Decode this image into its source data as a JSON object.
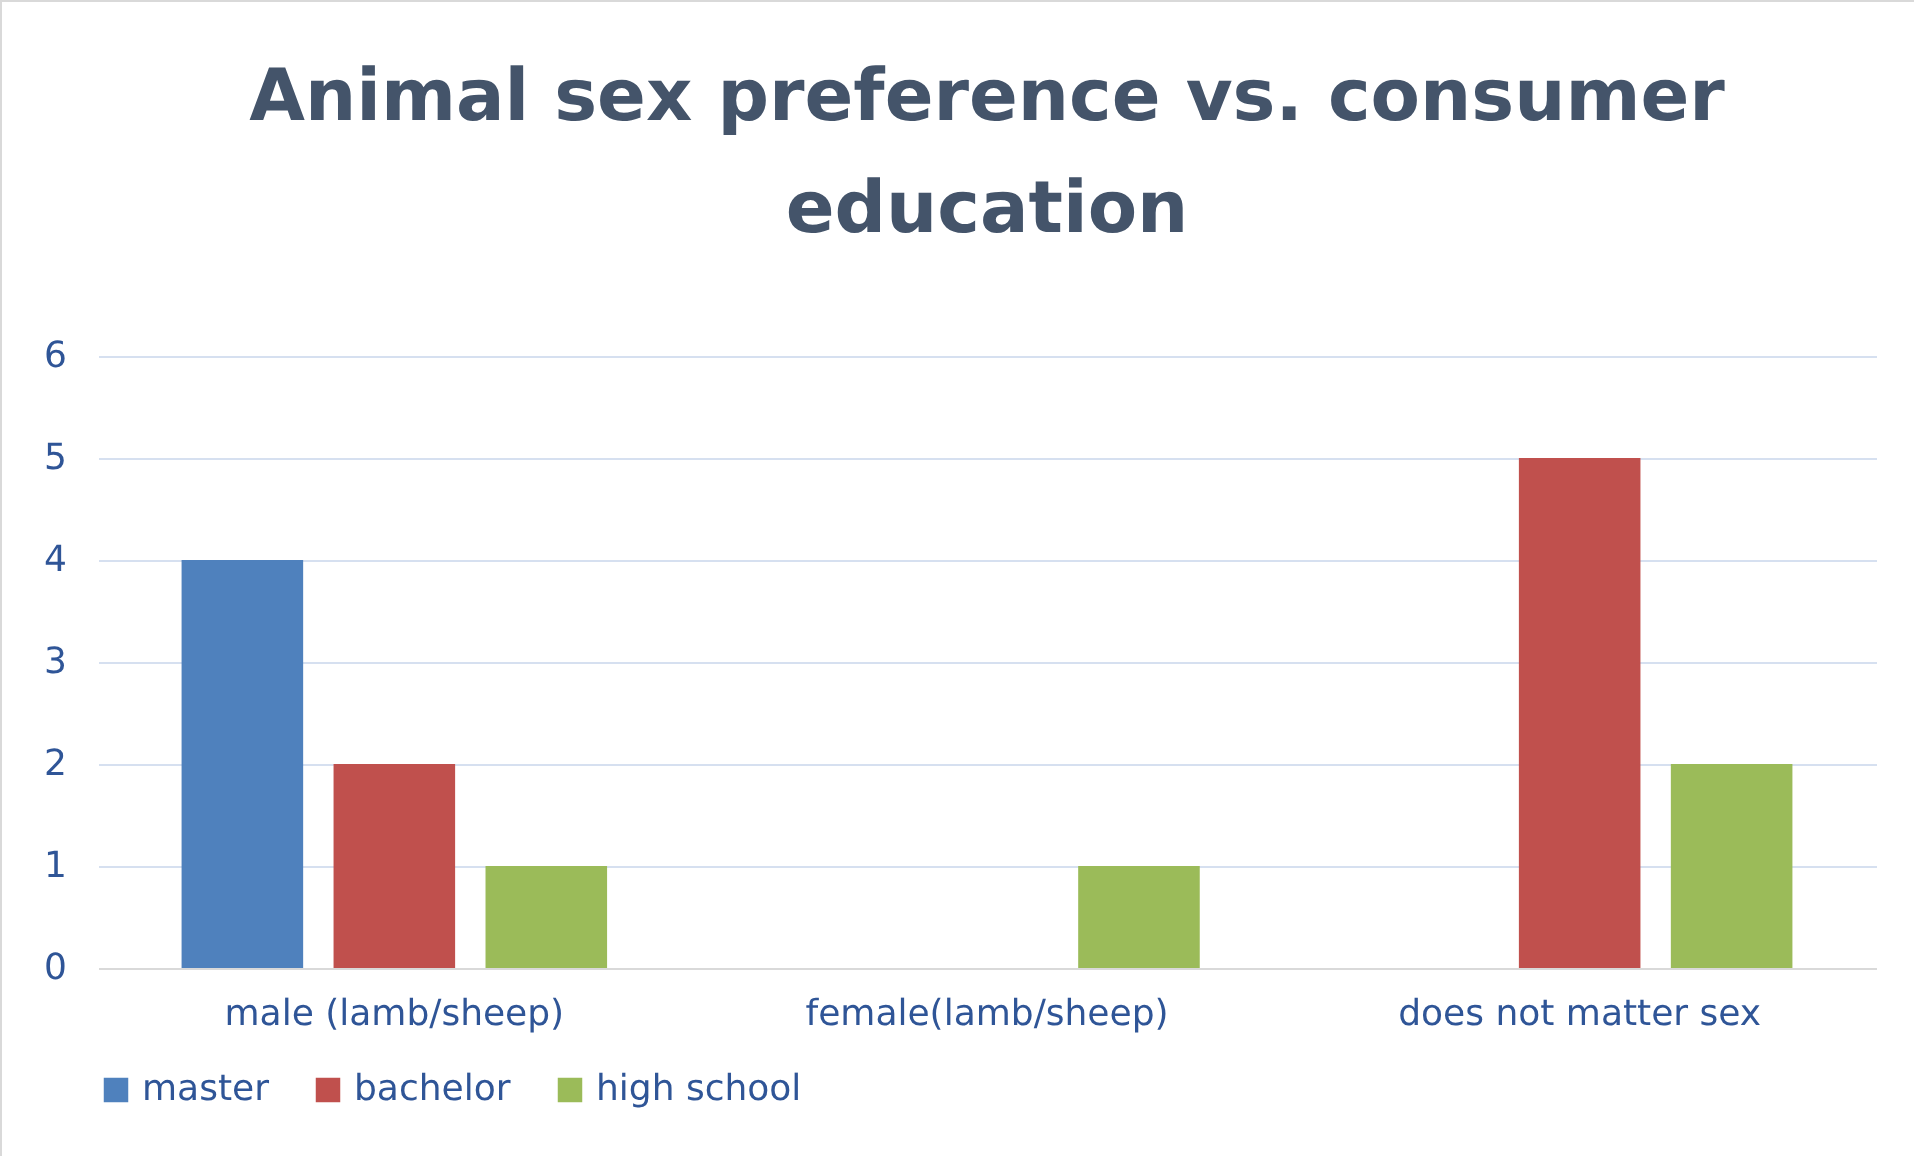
{
  "chart_data": {
    "type": "bar",
    "title": "Animal sex preference vs. consumer education",
    "categories": [
      "male (lamb/sheep)",
      "female(lamb/sheep)",
      "does not matter sex"
    ],
    "series": [
      {
        "name": "master",
        "color": "#4f81bd",
        "values": [
          4,
          0,
          0
        ]
      },
      {
        "name": "bachelor",
        "color": "#c0504d",
        "values": [
          2,
          0,
          5
        ]
      },
      {
        "name": "high school",
        "color": "#9bbb59",
        "values": [
          1,
          1,
          2
        ]
      }
    ],
    "ylim": [
      0,
      6
    ],
    "yticks": [
      0,
      1,
      2,
      3,
      4,
      5,
      6
    ],
    "grid": "y",
    "legend": "bottom"
  }
}
